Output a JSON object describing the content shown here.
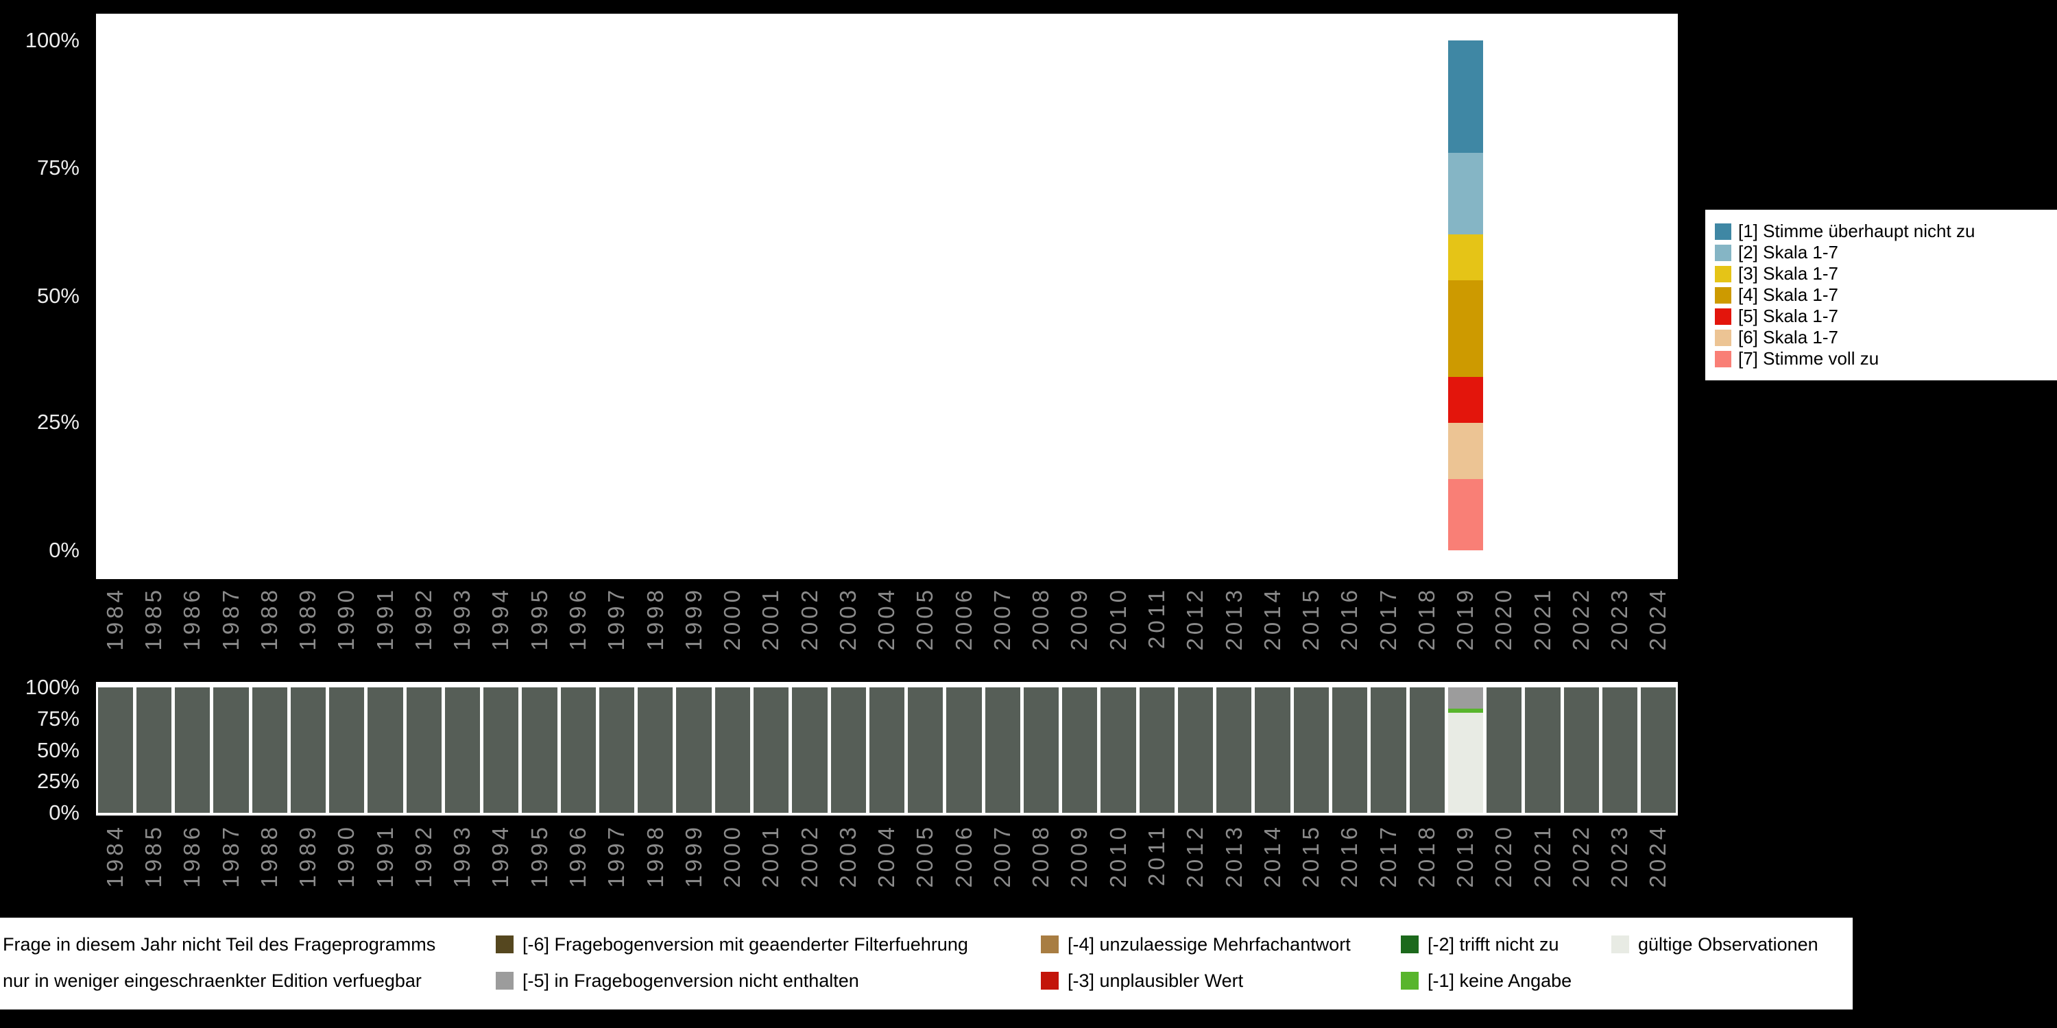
{
  "style": {
    "page_background": "#000000",
    "plot_background": "#ffffff",
    "y_tick_color": "#ececec",
    "x_tick_color": "#8b8b8b"
  },
  "chart_data": [
    {
      "id": "answer-scale-distribution",
      "type": "bar",
      "stacked": true,
      "orientation": "vertical",
      "grid": false,
      "legend_position": "right-outside",
      "ylim_pct": [
        0,
        100
      ],
      "y_tick_labels_top_to_bottom": [
        "100%",
        "75%",
        "50%",
        "25%",
        "0%"
      ],
      "x_categories": [
        "1984",
        "1985",
        "1986",
        "1987",
        "1988",
        "1989",
        "1990",
        "1991",
        "1992",
        "1993",
        "1994",
        "1995",
        "1996",
        "1997",
        "1998",
        "1999",
        "2000",
        "2001",
        "2002",
        "2003",
        "2004",
        "2005",
        "2006",
        "2007",
        "2008",
        "2009",
        "2010",
        "2011",
        "2012",
        "2013",
        "2014",
        "2015",
        "2016",
        "2017",
        "2018",
        "2019",
        "2020",
        "2021",
        "2022",
        "2023",
        "2024"
      ],
      "data_year": "2019",
      "note": "Only 2019 shows a stacked bar; all other years are empty. Values estimated from axis, percent of bar.",
      "series_stack_top_to_bottom": [
        {
          "name": "[1] Stimme überhaupt nicht zu",
          "color": "#3f87a4",
          "values_by_year": {
            "2019": 22
          }
        },
        {
          "name": "[2] Skala 1-7",
          "color": "#85b5c5",
          "values_by_year": {
            "2019": 16
          }
        },
        {
          "name": "[3] Skala 1-7",
          "color": "#e5c417",
          "values_by_year": {
            "2019": 9
          }
        },
        {
          "name": "[4] Skala 1-7",
          "color": "#cd9a00",
          "values_by_year": {
            "2019": 19
          }
        },
        {
          "name": "[5] Skala 1-7",
          "color": "#e3150c",
          "values_by_year": {
            "2019": 9
          }
        },
        {
          "name": "[6] Skala 1-7",
          "color": "#ecc494",
          "values_by_year": {
            "2019": 11
          }
        },
        {
          "name": "[7] Stimme voll zu",
          "color": "#f97f76",
          "values_by_year": {
            "2019": 14
          }
        }
      ]
    },
    {
      "id": "observation-status",
      "type": "bar",
      "stacked": true,
      "orientation": "vertical",
      "grid": false,
      "ylim_pct": [
        0,
        100
      ],
      "y_tick_labels_top_to_bottom": [
        "100%",
        "75%",
        "50%",
        "25%",
        "0%"
      ],
      "x_categories_same_as_first_chart": true,
      "data_year": "2019",
      "note": "Every year shows a full dark bar except 2019, which stacks (top to bottom) [-5], [-1] and gültige Observationen.",
      "series": [
        {
          "name": "Frage in diesem Jahr nicht Teil des Frageprogramms",
          "color": "#565e57",
          "value_pct_every_year_except_2019": 100
        },
        {
          "name": "[-5] in Fragebogenversion nicht enthalten",
          "color": "#9c9c9c",
          "values_by_year": {
            "2019": 17
          }
        },
        {
          "name": "[-1] keine Angabe",
          "color": "#58b52c",
          "values_by_year": {
            "2019": 3
          }
        },
        {
          "name": "gültige Observationen",
          "color": "#e8ebe4",
          "values_by_year": {
            "2019": 80
          }
        }
      ]
    }
  ],
  "missing_legend": {
    "rows": [
      [
        {
          "label": "Frage in diesem Jahr nicht Teil des Frageprogramms",
          "color": "#565e57",
          "swatch_visible": false
        },
        {
          "label": "[-6] Fragebogenversion mit geaenderter Filterfuehrung",
          "color": "#55471f",
          "swatch_visible": true
        },
        {
          "label": "[-4] unzulaessige Mehrfachantwort",
          "color": "#a87d42",
          "swatch_visible": true
        },
        {
          "label": "[-2] trifft nicht zu",
          "color": "#1c691c",
          "swatch_visible": true
        },
        {
          "label": "gültige Observationen",
          "color": "#e8ebe4",
          "swatch_visible": true
        }
      ],
      [
        {
          "label": "nur in weniger eingeschraenkter Edition verfuegbar",
          "color": "#9c9c9c",
          "swatch_visible": false
        },
        {
          "label": "[-5] in Fragebogenversion nicht enthalten",
          "color": "#9c9c9c",
          "swatch_visible": true
        },
        {
          "label": "[-3] unplausibler Wert",
          "color": "#c3150a",
          "swatch_visible": true
        },
        {
          "label": "[-1] keine Angabe",
          "color": "#58b52c",
          "swatch_visible": true
        },
        null
      ]
    ]
  }
}
